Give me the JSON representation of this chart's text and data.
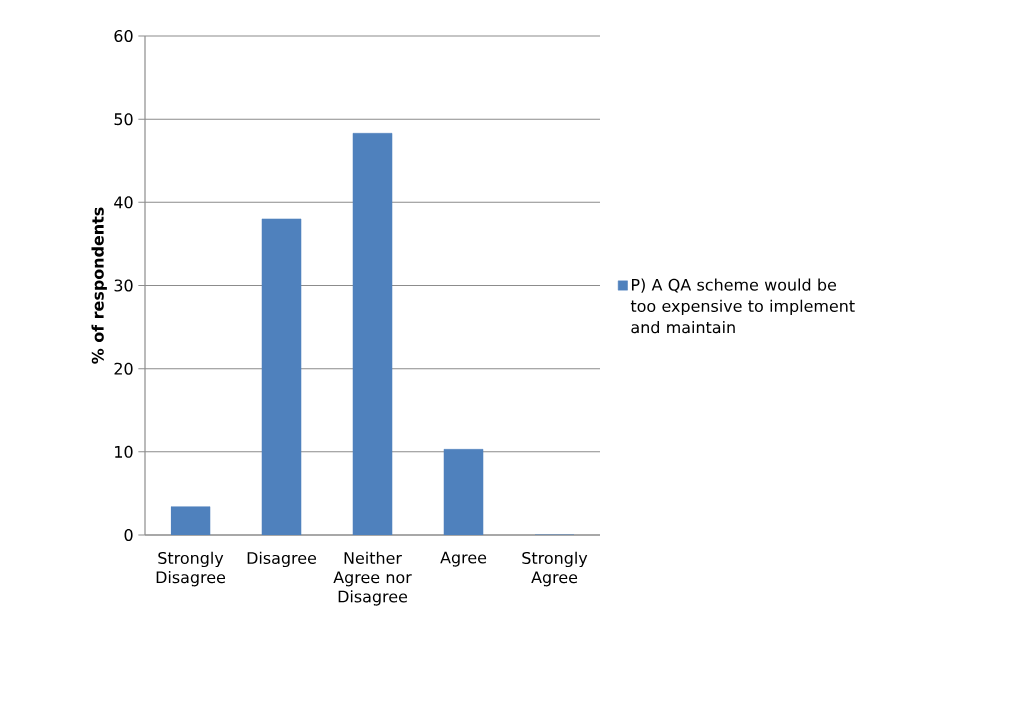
{
  "chart_data": {
    "type": "bar",
    "ylabel": "% of respondents",
    "categories": [
      "Strongly Disagree",
      "Disagree",
      "Neither Agree nor Disagree",
      "Agree",
      "Strongly Agree"
    ],
    "series": [
      {
        "name": "P) A QA scheme would be too expensive to implement and maintain",
        "color": "#4f81bd",
        "values": [
          3.4,
          38.0,
          48.3,
          10.3,
          0
        ]
      }
    ],
    "ylim": [
      0,
      60
    ],
    "yticks": [
      0,
      10,
      20,
      30,
      40,
      50,
      60
    ],
    "grid": "y",
    "legend": "right"
  }
}
